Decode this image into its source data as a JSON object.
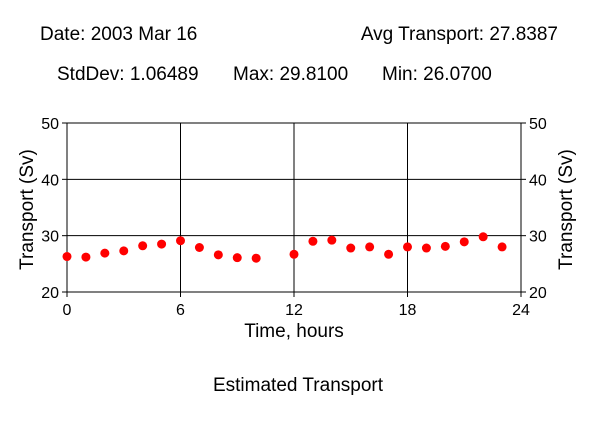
{
  "header": {
    "date": "Date: 2003 Mar 16",
    "avg": "Avg Transport: 27.8387",
    "stddev": "StdDev: 1.06489",
    "max": "Max: 29.8100",
    "min": "Min: 26.0700"
  },
  "footer_title": "Estimated Transport",
  "colors": {
    "marker": "#ff0000",
    "axes": "#000000",
    "grid": "#000000",
    "background": "#ffffff"
  },
  "chart_data": {
    "type": "scatter",
    "title": "Estimated Transport",
    "xlabel": "Time, hours",
    "ylabel": "Transport (Sv)",
    "ylabel_right": "Transport (Sv)",
    "xlim": [
      0,
      24
    ],
    "ylim": [
      20,
      50
    ],
    "xticks": [
      0,
      6,
      12,
      18,
      24
    ],
    "yticks": [
      20,
      30,
      40,
      50
    ],
    "x_tick_labels": [
      "0",
      "6",
      "12",
      "18",
      "24"
    ],
    "y_tick_labels": [
      "20",
      "30",
      "40",
      "50"
    ],
    "grid": true,
    "series": [
      {
        "x": [
          0,
          1,
          2,
          3,
          4,
          5,
          6,
          7,
          8,
          9,
          10,
          12,
          13,
          14,
          15,
          16,
          17,
          18,
          19,
          20,
          21,
          22,
          23
        ],
        "y": [
          26.3,
          26.2,
          26.9,
          27.3,
          28.2,
          28.5,
          29.1,
          27.9,
          26.6,
          26.1,
          26.0,
          26.7,
          29.0,
          29.2,
          27.8,
          28.0,
          26.7,
          28.0,
          27.8,
          28.1,
          28.9,
          29.8,
          28.0
        ]
      }
    ]
  }
}
